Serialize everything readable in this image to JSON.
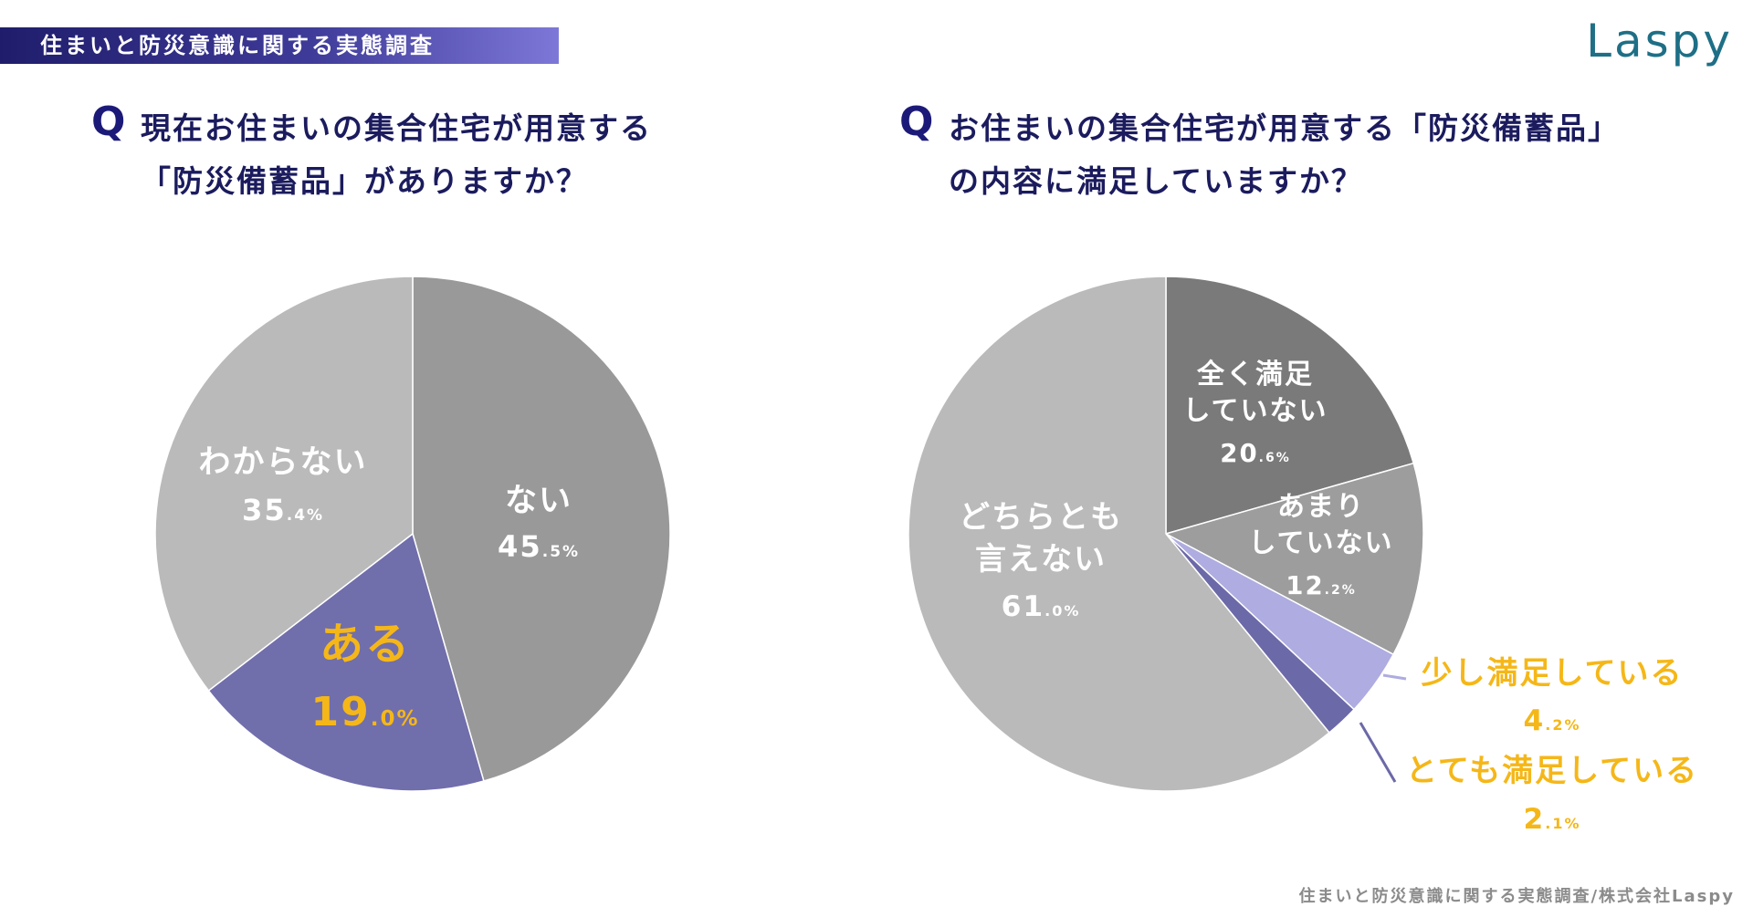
{
  "header": {
    "banner_title": "住まいと防災意識に関する実態調査",
    "logo": "Laspy"
  },
  "questions": {
    "q_mark": "Q",
    "left": {
      "line1": "現在お住まいの集合住宅が用意する",
      "line2": "「防災備蓄品」がありますか？"
    },
    "right": {
      "line1": "お住まいの集合住宅が用意する「防災備蓄品」",
      "line2": "の内容に満足していますか？"
    }
  },
  "colors": {
    "highlight_label": "#f5b718",
    "white_label": "#ffffff"
  },
  "chart_data": [
    {
      "type": "pie",
      "title": "現在お住まいの集合住宅が用意する「防災備蓄品」がありますか？",
      "slices": [
        {
          "label": [
            "ない"
          ],
          "value": 45.5,
          "int": "45",
          "dec": ".5%",
          "color": "#999999"
        },
        {
          "label": [
            "ある"
          ],
          "value": 19.0,
          "int": "19",
          "dec": ".0%",
          "color": "#716eac",
          "highlight": true
        },
        {
          "label": [
            "わからない"
          ],
          "value": 35.4,
          "int": "35",
          "dec": ".4%",
          "color": "#bababa"
        }
      ]
    },
    {
      "type": "pie",
      "title": "お住まいの集合住宅が用意する「防災備蓄品」の内容に満足していますか？",
      "slices": [
        {
          "label": [
            "全く満足",
            "していない"
          ],
          "value": 20.6,
          "int": "20",
          "dec": ".6%",
          "color": "#7a7a7a"
        },
        {
          "label": [
            "あまり",
            "していない"
          ],
          "value": 12.2,
          "int": "12",
          "dec": ".2%",
          "color": "#9d9d9d"
        },
        {
          "label": [
            "少し満足している"
          ],
          "value": 4.2,
          "int": "4",
          "dec": ".2%",
          "color": "#aeace0",
          "highlight": true,
          "callout": true
        },
        {
          "label": [
            "とても満足している"
          ],
          "value": 2.1,
          "int": "2",
          "dec": ".1%",
          "color": "#6c69a8",
          "highlight": true,
          "callout": true
        },
        {
          "label": [
            "どちらとも",
            "言えない"
          ],
          "value": 61.0,
          "int": "61",
          "dec": ".0%",
          "color": "#bababa"
        }
      ]
    }
  ],
  "footer": {
    "source": "住まいと防災意識に関する実態調査/株式会社Laspy"
  }
}
